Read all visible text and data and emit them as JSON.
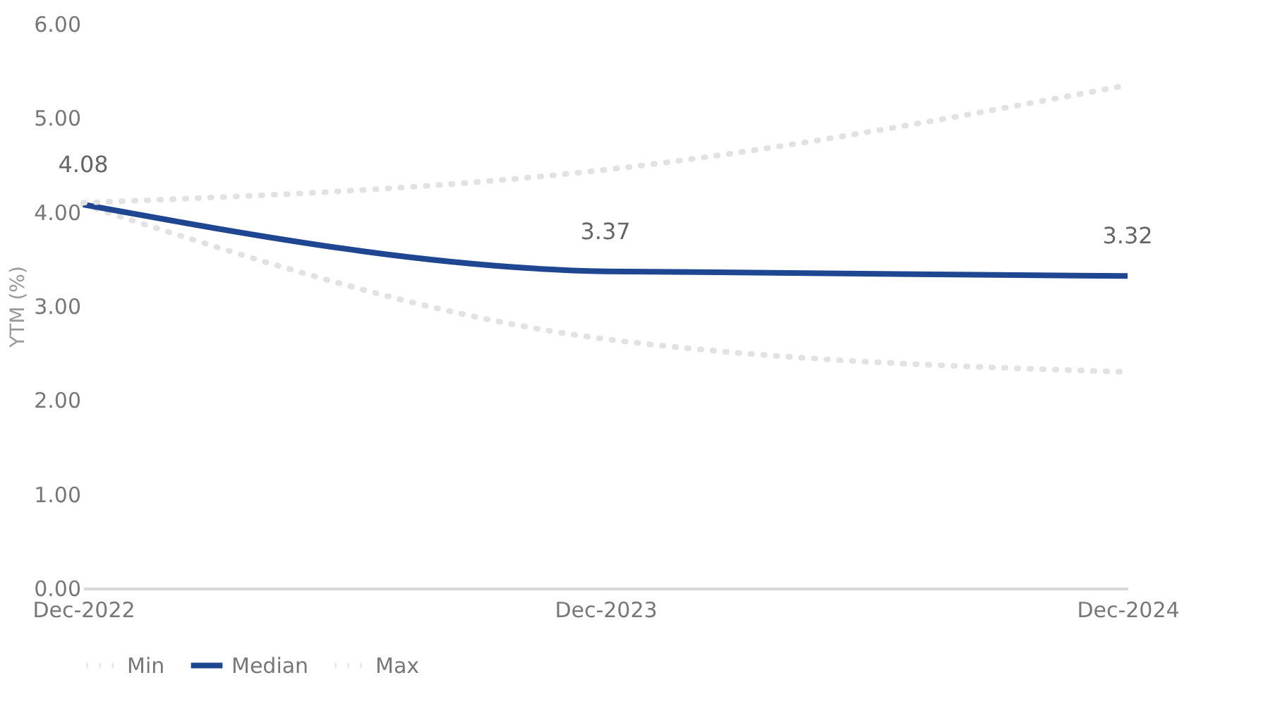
{
  "chart_data": {
    "type": "line",
    "categories": [
      "Dec-2022",
      "Dec-2023",
      "Dec-2024"
    ],
    "ylabel": "YTM (%)",
    "ylim": [
      0,
      6
    ],
    "yticks": [
      {
        "value": 0,
        "label": "0.00"
      },
      {
        "value": 1,
        "label": "1.00"
      },
      {
        "value": 2,
        "label": "2.00"
      },
      {
        "value": 3,
        "label": "3.00"
      },
      {
        "value": 4,
        "label": "4.00"
      },
      {
        "value": 5,
        "label": "5.00"
      },
      {
        "value": 6,
        "label": "6.00"
      }
    ],
    "grid": false,
    "legend": "bottom",
    "marker": "none",
    "series": [
      {
        "name": "Min",
        "color": "#e2e2e2",
        "line_style": "dotted",
        "values": [
          4.08,
          2.65,
          2.3
        ]
      },
      {
        "name": "Median",
        "color": "#1f4690",
        "line_style": "solid",
        "values": [
          4.08,
          3.37,
          3.32
        ],
        "value_labels": [
          "4.08",
          "3.37",
          "3.32"
        ]
      },
      {
        "name": "Max",
        "color": "#e2e2e2",
        "line_style": "dotted",
        "values": [
          4.1,
          4.45,
          5.35
        ]
      }
    ]
  }
}
